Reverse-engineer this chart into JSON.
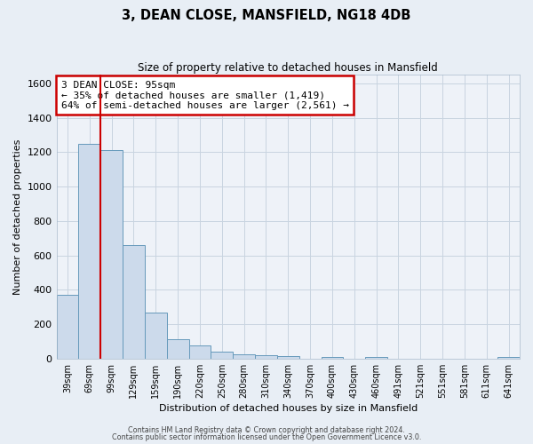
{
  "title": "3, DEAN CLOSE, MANSFIELD, NG18 4DB",
  "subtitle": "Size of property relative to detached houses in Mansfield",
  "xlabel": "Distribution of detached houses by size in Mansfield",
  "ylabel": "Number of detached properties",
  "bar_labels": [
    "39sqm",
    "69sqm",
    "99sqm",
    "129sqm",
    "159sqm",
    "190sqm",
    "220sqm",
    "250sqm",
    "280sqm",
    "310sqm",
    "340sqm",
    "370sqm",
    "400sqm",
    "430sqm",
    "460sqm",
    "491sqm",
    "521sqm",
    "551sqm",
    "581sqm",
    "611sqm",
    "641sqm"
  ],
  "bar_values": [
    370,
    1250,
    1210,
    660,
    270,
    115,
    75,
    40,
    25,
    20,
    15,
    0,
    10,
    0,
    10,
    0,
    0,
    0,
    0,
    0,
    10
  ],
  "bar_color": "#ccdaeb",
  "bar_edge_color": "#6699bb",
  "vline_color": "#cc0000",
  "ylim": [
    0,
    1650
  ],
  "yticks": [
    0,
    200,
    400,
    600,
    800,
    1000,
    1200,
    1400,
    1600
  ],
  "annotation_title": "3 DEAN CLOSE: 95sqm",
  "annotation_line1": "← 35% of detached houses are smaller (1,419)",
  "annotation_line2": "64% of semi-detached houses are larger (2,561) →",
  "annotation_box_color": "#ffffff",
  "annotation_edge_color": "#cc0000",
  "background_color": "#e8eef5",
  "plot_bg_color": "#eef2f8",
  "grid_color": "#c8d4e0",
  "footer1": "Contains HM Land Registry data © Crown copyright and database right 2024.",
  "footer2": "Contains public sector information licensed under the Open Government Licence v3.0."
}
